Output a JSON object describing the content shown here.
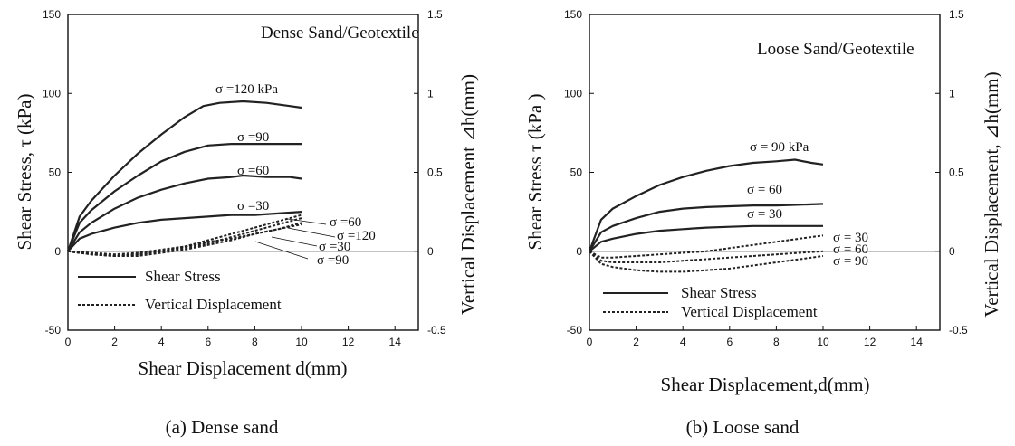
{
  "chart_data": [
    {
      "type": "line",
      "panel": "a",
      "title": "Dense Sand/Geotextile",
      "caption": "(a) Dense sand",
      "xlabel": "Shear Displacement d(mm)",
      "ylabel": "Shear Stress, τ (kPa)",
      "y2label": "Vertical Displacement ⊿h(mm)",
      "xlim": [
        0,
        15
      ],
      "ylim": [
        -50,
        150
      ],
      "y2lim": [
        -0.5,
        1.5
      ],
      "xticks": [
        "0",
        "2",
        "4",
        "6",
        "8",
        "10",
        "12",
        "14"
      ],
      "yticks": [
        "150",
        "100",
        "50",
        "0",
        "-50"
      ],
      "y2ticks": [
        "1.5",
        "1",
        "0.5",
        "0",
        "-0.5"
      ],
      "legend": {
        "placement": "bottom-left",
        "solid_label": "Shear Stress",
        "dashed_label": "Vertical Displacement"
      },
      "shear_series": [
        {
          "name": "σ =120 kPa",
          "x": [
            0,
            0.5,
            1,
            2,
            3,
            4,
            5,
            5.8,
            6.5,
            7.5,
            8.5,
            9.5,
            10
          ],
          "y": [
            0,
            22,
            32,
            48,
            62,
            74,
            85,
            92,
            94,
            95,
            94,
            92,
            91
          ]
        },
        {
          "name": "σ =90",
          "x": [
            0,
            0.5,
            1,
            2,
            3,
            4,
            5,
            6,
            7,
            8,
            9,
            10
          ],
          "y": [
            0,
            18,
            26,
            38,
            48,
            57,
            63,
            67,
            68,
            68,
            68,
            68
          ]
        },
        {
          "name": "σ =60",
          "x": [
            0,
            0.5,
            1,
            2,
            3,
            4,
            5,
            6,
            7,
            7.5,
            8.5,
            9.5,
            10
          ],
          "y": [
            0,
            12,
            18,
            27,
            34,
            39,
            43,
            46,
            47,
            48,
            47,
            47,
            46
          ]
        },
        {
          "name": "σ =30",
          "x": [
            0,
            0.5,
            1,
            2,
            3,
            4,
            5,
            6,
            7,
            8,
            9,
            10
          ],
          "y": [
            0,
            8,
            11,
            15,
            18,
            20,
            21,
            22,
            23,
            23,
            24,
            25
          ]
        }
      ],
      "vertical_series": [
        {
          "name": "σ =60",
          "x": [
            0,
            1,
            2,
            3,
            4,
            5,
            6,
            7,
            8,
            9,
            10
          ],
          "y": [
            0,
            -0.02,
            -0.03,
            -0.02,
            0,
            0.03,
            0.07,
            0.11,
            0.15,
            0.19,
            0.23
          ]
        },
        {
          "name": "σ =120",
          "x": [
            0,
            1,
            2,
            3,
            4,
            5,
            6,
            7,
            8,
            9,
            10
          ],
          "y": [
            0,
            -0.02,
            -0.03,
            -0.02,
            0,
            0.02,
            0.05,
            0.09,
            0.13,
            0.17,
            0.21
          ]
        },
        {
          "name": "σ =30",
          "x": [
            0,
            1,
            2,
            3,
            4,
            5,
            6,
            7,
            8,
            9,
            10
          ],
          "y": [
            0,
            -0.01,
            -0.02,
            -0.01,
            0.01,
            0.03,
            0.06,
            0.08,
            0.11,
            0.14,
            0.17
          ]
        },
        {
          "name": "σ =90",
          "x": [
            0,
            1,
            2,
            3,
            4,
            5,
            6,
            7,
            8,
            9,
            10
          ],
          "y": [
            0,
            -0.02,
            -0.03,
            -0.03,
            -0.01,
            0.01,
            0.04,
            0.07,
            0.11,
            0.14,
            0.18
          ]
        }
      ]
    },
    {
      "type": "line",
      "panel": "b",
      "title": "Loose Sand/Geotextile",
      "caption": "(b) Loose sand",
      "xlabel": "Shear Displacement,d(mm)",
      "ylabel": "Shear Stress τ (kPa )",
      "y2label": "Vertical Displacement, ⊿h(mm)",
      "xlim": [
        0,
        15
      ],
      "ylim": [
        -50,
        150
      ],
      "y2lim": [
        -0.5,
        1.5
      ],
      "xticks": [
        "0",
        "2",
        "4",
        "6",
        "8",
        "10",
        "12",
        "14"
      ],
      "yticks": [
        "150",
        "100",
        "50",
        "0",
        "-50"
      ],
      "y2ticks": [
        "1.5",
        "1",
        "0.5",
        "0",
        "-0.5"
      ],
      "legend": {
        "placement": "bottom-left",
        "solid_label": "Shear Stress",
        "dashed_label": "Vertical Displacement"
      },
      "shear_series": [
        {
          "name": "σ = 90 kPa",
          "x": [
            0,
            0.5,
            1,
            2,
            3,
            4,
            5,
            6,
            7,
            8,
            8.8,
            9.5,
            10
          ],
          "y": [
            0,
            20,
            27,
            35,
            42,
            47,
            51,
            54,
            56,
            57,
            58,
            56,
            55
          ]
        },
        {
          "name": "σ = 60",
          "x": [
            0,
            0.5,
            1,
            2,
            3,
            4,
            5,
            6,
            7,
            8,
            9,
            10
          ],
          "y": [
            0,
            12,
            16,
            21,
            25,
            27,
            28,
            28.5,
            29,
            29,
            29.5,
            30
          ]
        },
        {
          "name": "σ = 30",
          "x": [
            0,
            0.5,
            1,
            2,
            3,
            4,
            5,
            6,
            7,
            8,
            9,
            10
          ],
          "y": [
            0,
            6,
            8,
            11,
            13,
            14,
            15,
            15.5,
            16,
            16,
            16,
            16
          ]
        }
      ],
      "vertical_series": [
        {
          "name": "σ = 30",
          "x": [
            0,
            0.5,
            1,
            2,
            3,
            4,
            5,
            6,
            7,
            8,
            9,
            10
          ],
          "y": [
            0,
            -0.04,
            -0.04,
            -0.03,
            -0.02,
            -0.01,
            0,
            0.02,
            0.04,
            0.06,
            0.08,
            0.1
          ]
        },
        {
          "name": "σ = 60",
          "x": [
            0,
            0.5,
            1,
            2,
            3,
            4,
            5,
            6,
            7,
            8,
            9,
            10
          ],
          "y": [
            0,
            -0.06,
            -0.07,
            -0.07,
            -0.07,
            -0.06,
            -0.05,
            -0.04,
            -0.03,
            -0.02,
            -0.01,
            0
          ]
        },
        {
          "name": "σ = 90",
          "x": [
            0,
            0.5,
            1,
            2,
            3,
            4,
            5,
            6,
            7,
            8,
            9,
            10
          ],
          "y": [
            0,
            -0.08,
            -0.1,
            -0.12,
            -0.13,
            -0.13,
            -0.12,
            -0.11,
            -0.09,
            -0.07,
            -0.05,
            -0.03
          ]
        }
      ]
    }
  ]
}
